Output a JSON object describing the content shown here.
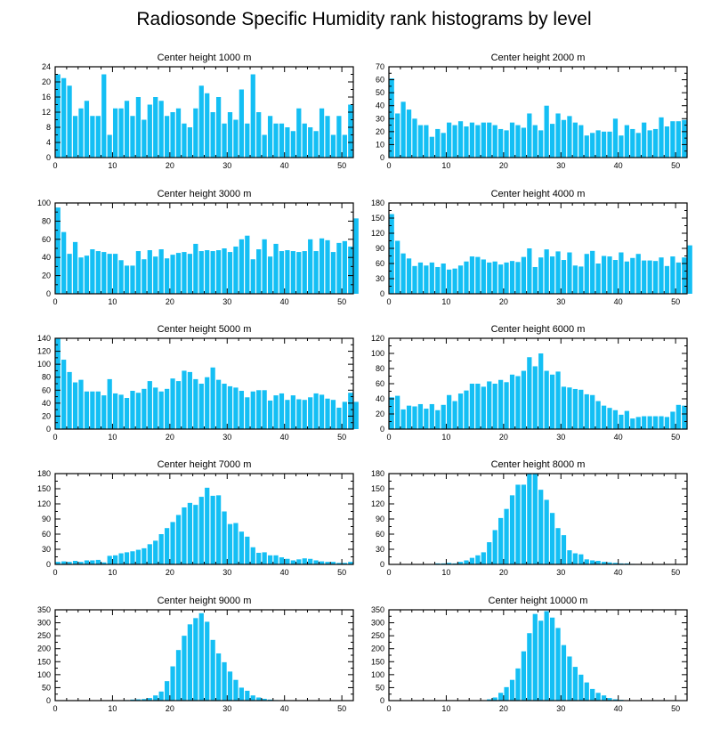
{
  "title": "Radiosonde Specific Humidity rank histograms by level",
  "colors": {
    "bar": "#14bff4",
    "axis": "#000000"
  },
  "chart_data": [
    {
      "type": "bar",
      "title": "Center height 1000 m",
      "xlim": [
        0,
        52
      ],
      "ylim": [
        0,
        24
      ],
      "yticks": [
        0,
        4,
        8,
        12,
        16,
        20,
        24
      ],
      "xticks": [
        0,
        10,
        20,
        30,
        40,
        50
      ],
      "values": [
        22,
        21,
        19,
        11,
        13,
        15,
        11,
        11,
        22,
        6,
        13,
        13,
        15,
        11,
        16,
        10,
        14,
        16,
        15,
        11,
        12,
        13,
        9,
        8,
        13,
        19,
        17,
        12,
        16,
        9,
        12,
        10,
        18,
        9,
        22,
        12,
        6,
        11,
        9,
        9,
        8,
        7,
        13,
        9,
        8,
        7,
        13,
        11,
        6,
        11,
        6,
        14
      ]
    },
    {
      "type": "bar",
      "title": "Center height 2000 m",
      "xlim": [
        0,
        52
      ],
      "ylim": [
        0,
        70
      ],
      "yticks": [
        0,
        10,
        20,
        30,
        40,
        50,
        60,
        70
      ],
      "xticks": [
        0,
        10,
        20,
        30,
        40,
        50
      ],
      "values": [
        61,
        34,
        43,
        37,
        30,
        25,
        25,
        16,
        22,
        19,
        27,
        25,
        28,
        24,
        27,
        25,
        27,
        27,
        25,
        22,
        21,
        27,
        25,
        23,
        34,
        25,
        21,
        40,
        26,
        34,
        29,
        32,
        27,
        25,
        17,
        19,
        21,
        20,
        20,
        30,
        17,
        25,
        22,
        19,
        27,
        21,
        22,
        31,
        24,
        28,
        28,
        29
      ]
    },
    {
      "type": "bar",
      "title": "Center height 3000 m",
      "xlim": [
        0,
        52
      ],
      "ylim": [
        0,
        100
      ],
      "yticks": [
        0,
        20,
        40,
        60,
        80,
        100
      ],
      "xticks": [
        0,
        10,
        20,
        30,
        40,
        50
      ],
      "values": [
        95,
        68,
        44,
        57,
        40,
        42,
        49,
        47,
        46,
        44,
        44,
        37,
        31,
        31,
        47,
        38,
        48,
        41,
        49,
        39,
        43,
        45,
        46,
        44,
        55,
        47,
        48,
        47,
        48,
        50,
        46,
        52,
        60,
        64,
        38,
        49,
        60,
        41,
        55,
        47,
        48,
        47,
        46,
        47,
        60,
        47,
        61,
        59,
        46,
        56,
        58,
        52,
        83
      ]
    },
    {
      "type": "bar",
      "title": "Center height 4000 m",
      "xlim": [
        0,
        52
      ],
      "ylim": [
        0,
        180
      ],
      "yticks": [
        0,
        30,
        60,
        90,
        120,
        150,
        180
      ],
      "xticks": [
        0,
        10,
        20,
        30,
        40,
        50
      ],
      "values": [
        158,
        105,
        80,
        70,
        55,
        62,
        56,
        62,
        53,
        60,
        48,
        50,
        56,
        64,
        74,
        73,
        68,
        62,
        64,
        58,
        62,
        65,
        63,
        73,
        90,
        53,
        72,
        88,
        74,
        84,
        67,
        82,
        56,
        54,
        79,
        85,
        60,
        75,
        74,
        67,
        82,
        64,
        71,
        79,
        66,
        66,
        65,
        72,
        55,
        74,
        62,
        72,
        96
      ]
    },
    {
      "type": "bar",
      "title": "Center height 5000 m",
      "xlim": [
        0,
        52
      ],
      "ylim": [
        0,
        140
      ],
      "yticks": [
        0,
        20,
        40,
        60,
        80,
        100,
        120,
        140
      ],
      "xticks": [
        0,
        10,
        20,
        30,
        40,
        50
      ],
      "values": [
        140,
        107,
        88,
        72,
        76,
        58,
        58,
        58,
        52,
        77,
        55,
        53,
        48,
        59,
        56,
        62,
        74,
        64,
        58,
        62,
        78,
        74,
        90,
        88,
        77,
        70,
        80,
        95,
        76,
        70,
        66,
        64,
        59,
        49,
        58,
        60,
        60,
        44,
        52,
        55,
        45,
        52,
        46,
        45,
        49,
        55,
        53,
        47,
        45,
        33,
        42,
        56,
        42
      ]
    },
    {
      "type": "bar",
      "title": "Center height 6000 m",
      "xlim": [
        0,
        52
      ],
      "ylim": [
        0,
        120
      ],
      "yticks": [
        0,
        20,
        40,
        60,
        80,
        100,
        120
      ],
      "xticks": [
        0,
        10,
        20,
        30,
        40,
        50
      ],
      "values": [
        42,
        44,
        26,
        31,
        30,
        33,
        27,
        33,
        25,
        32,
        45,
        37,
        47,
        51,
        60,
        60,
        56,
        63,
        60,
        65,
        62,
        72,
        70,
        77,
        95,
        83,
        100,
        77,
        72,
        76,
        56,
        55,
        53,
        52,
        46,
        45,
        37,
        31,
        28,
        25,
        19,
        24,
        14,
        16,
        17,
        17,
        17,
        17,
        16,
        23,
        32,
        31
      ]
    },
    {
      "type": "bar",
      "title": "Center height 7000 m",
      "xlim": [
        0,
        52
      ],
      "ylim": [
        0,
        180
      ],
      "yticks": [
        0,
        30,
        60,
        90,
        120,
        150,
        180
      ],
      "xticks": [
        0,
        10,
        20,
        30,
        40,
        50
      ],
      "values": [
        5,
        6,
        5,
        7,
        5,
        8,
        8,
        9,
        4,
        17,
        18,
        22,
        24,
        26,
        29,
        32,
        40,
        47,
        60,
        72,
        84,
        98,
        113,
        122,
        118,
        134,
        152,
        136,
        137,
        105,
        80,
        82,
        65,
        55,
        34,
        23,
        24,
        18,
        18,
        14,
        11,
        8,
        10,
        12,
        11,
        8,
        6,
        5,
        5,
        3,
        3,
        5
      ]
    },
    {
      "type": "bar",
      "title": "Center height 8000 m",
      "xlim": [
        0,
        52
      ],
      "ylim": [
        0,
        180
      ],
      "yticks": [
        0,
        30,
        60,
        90,
        120,
        150,
        180
      ],
      "xticks": [
        0,
        10,
        20,
        30,
        40,
        50
      ],
      "values": [
        0,
        0,
        0,
        0,
        0,
        0,
        0,
        0,
        2,
        2,
        3,
        2,
        5,
        8,
        13,
        18,
        24,
        44,
        68,
        92,
        110,
        137,
        158,
        158,
        180,
        180,
        148,
        128,
        102,
        72,
        58,
        28,
        22,
        20,
        10,
        8,
        7,
        5,
        4,
        3,
        2,
        2,
        1,
        0,
        0,
        0,
        0,
        0,
        0,
        0,
        0,
        0
      ]
    },
    {
      "type": "bar",
      "title": "Center height 9000 m",
      "xlim": [
        0,
        52
      ],
      "ylim": [
        0,
        350
      ],
      "yticks": [
        0,
        50,
        100,
        150,
        200,
        250,
        300,
        350
      ],
      "xticks": [
        0,
        10,
        20,
        30,
        40,
        50
      ],
      "values": [
        0,
        0,
        0,
        0,
        0,
        0,
        0,
        0,
        0,
        0,
        0,
        0,
        2,
        4,
        5,
        6,
        10,
        20,
        35,
        75,
        132,
        195,
        250,
        294,
        318,
        337,
        304,
        234,
        182,
        148,
        112,
        80,
        50,
        38,
        20,
        12,
        7,
        4,
        2,
        1,
        0,
        0,
        0,
        0,
        0,
        0,
        0,
        0,
        0,
        0,
        0,
        0
      ]
    },
    {
      "type": "bar",
      "title": "Center height 10000 m",
      "xlim": [
        0,
        52
      ],
      "ylim": [
        0,
        350
      ],
      "yticks": [
        0,
        50,
        100,
        150,
        200,
        250,
        300,
        350
      ],
      "xticks": [
        0,
        10,
        20,
        30,
        40,
        50
      ],
      "values": [
        0,
        0,
        0,
        0,
        0,
        0,
        0,
        0,
        0,
        0,
        0,
        0,
        0,
        0,
        0,
        0,
        0,
        5,
        12,
        30,
        52,
        80,
        124,
        190,
        260,
        334,
        308,
        345,
        320,
        280,
        214,
        170,
        130,
        100,
        70,
        45,
        30,
        20,
        10,
        5,
        3,
        1,
        0,
        0,
        0,
        0,
        0,
        0,
        0,
        0,
        0,
        0
      ]
    }
  ]
}
